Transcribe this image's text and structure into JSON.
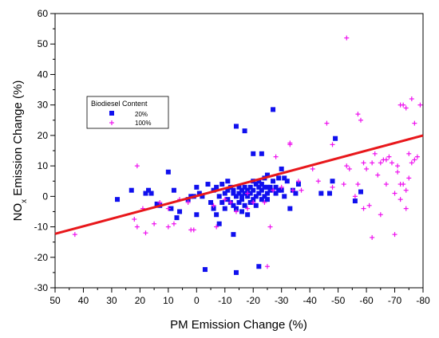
{
  "chart_data": {
    "type": "scatter",
    "title": "",
    "xlabel": "PM Emission Change (%)",
    "ylabel_main": "NO",
    "ylabel_sub": "x",
    "ylabel_rest": " Emission Change (%)",
    "xlim": [
      50,
      -80
    ],
    "ylim": [
      -30,
      60
    ],
    "xticks": [
      50,
      40,
      30,
      20,
      10,
      0,
      -10,
      -20,
      -30,
      -40,
      -50,
      -60,
      -70,
      -80
    ],
    "yticks": [
      -30,
      -20,
      -10,
      0,
      10,
      20,
      30,
      40,
      50,
      60
    ],
    "grid": false,
    "legend": {
      "title": "Biodiesel Content",
      "placement": "left-center"
    },
    "trendline": {
      "color": "#e8171b",
      "from": [
        50,
        -12.3
      ],
      "to": [
        -80,
        20
      ]
    },
    "series": [
      {
        "name": "20%",
        "marker": "square",
        "color": "#1010ee",
        "points": [
          [
            28,
            -1
          ],
          [
            23,
            2
          ],
          [
            18,
            1
          ],
          [
            17,
            2
          ],
          [
            16,
            1
          ],
          [
            14,
            -2.5
          ],
          [
            13,
            -3
          ],
          [
            10,
            8
          ],
          [
            9,
            -4
          ],
          [
            8,
            2
          ],
          [
            7,
            -7
          ],
          [
            6,
            -5
          ],
          [
            3,
            -1
          ],
          [
            2,
            0
          ],
          [
            1,
            0
          ],
          [
            0,
            3
          ],
          [
            0,
            -6
          ],
          [
            -1,
            1
          ],
          [
            -2,
            0
          ],
          [
            -3,
            -24
          ],
          [
            -4,
            4
          ],
          [
            -5,
            -2
          ],
          [
            -6,
            2
          ],
          [
            -6,
            -4
          ],
          [
            -7,
            -6
          ],
          [
            -7,
            3
          ],
          [
            -8,
            0
          ],
          [
            -8,
            -9
          ],
          [
            -9,
            4
          ],
          [
            -9,
            -2
          ],
          [
            -10,
            -4
          ],
          [
            -10,
            1
          ],
          [
            -11,
            2
          ],
          [
            -11,
            -1
          ],
          [
            -11,
            5
          ],
          [
            -12,
            3
          ],
          [
            -12,
            -2
          ],
          [
            -13,
            -12.5
          ],
          [
            -13,
            -3
          ],
          [
            -13,
            1
          ],
          [
            -13,
            2
          ],
          [
            -14,
            23
          ],
          [
            -14,
            -25
          ],
          [
            -14,
            0
          ],
          [
            -14,
            -4
          ],
          [
            -15,
            3
          ],
          [
            -15,
            1
          ],
          [
            -15,
            -2
          ],
          [
            -16,
            2
          ],
          [
            -16,
            -1
          ],
          [
            -16,
            -5
          ],
          [
            -16,
            0
          ],
          [
            -17,
            3
          ],
          [
            -17,
            21.5
          ],
          [
            -17,
            1
          ],
          [
            -17,
            -3
          ],
          [
            -18,
            2
          ],
          [
            -18,
            -6
          ],
          [
            -18,
            0
          ],
          [
            -19,
            -2
          ],
          [
            -19,
            1
          ],
          [
            -19,
            3
          ],
          [
            -20,
            14
          ],
          [
            -20,
            2
          ],
          [
            -20,
            5
          ],
          [
            -20,
            -1
          ],
          [
            -21,
            0
          ],
          [
            -21,
            -3
          ],
          [
            -21,
            4
          ],
          [
            -22,
            -23
          ],
          [
            -22,
            1
          ],
          [
            -22,
            5
          ],
          [
            -22,
            3
          ],
          [
            -23,
            2
          ],
          [
            -23,
            -1
          ],
          [
            -23,
            14
          ],
          [
            -23,
            4
          ],
          [
            -24,
            3
          ],
          [
            -24,
            6
          ],
          [
            -24,
            0
          ],
          [
            -25,
            7
          ],
          [
            -25,
            1
          ],
          [
            -25,
            3
          ],
          [
            -25,
            -1
          ],
          [
            -26,
            3
          ],
          [
            -26,
            2
          ],
          [
            -27,
            28.5
          ],
          [
            -27,
            5
          ],
          [
            -28,
            3
          ],
          [
            -28,
            1
          ],
          [
            -29,
            2
          ],
          [
            -29,
            6
          ],
          [
            -30,
            9
          ],
          [
            -30,
            2
          ],
          [
            -31,
            6
          ],
          [
            -31,
            0
          ],
          [
            -32,
            5
          ],
          [
            -33,
            -4
          ],
          [
            -34,
            2
          ],
          [
            -35,
            1
          ],
          [
            -36,
            4
          ],
          [
            -44,
            1
          ],
          [
            -47,
            1
          ],
          [
            -48,
            5
          ],
          [
            -49,
            19
          ],
          [
            -56,
            -1.5
          ],
          [
            -58,
            1.5
          ]
        ]
      },
      {
        "name": "100%",
        "marker": "plus",
        "color": "#ee10ee",
        "points": [
          [
            43,
            -12.5
          ],
          [
            22,
            -7.5
          ],
          [
            21,
            10
          ],
          [
            21,
            -10
          ],
          [
            19,
            -4
          ],
          [
            18,
            -12
          ],
          [
            15,
            -9
          ],
          [
            13,
            -2
          ],
          [
            10,
            -10
          ],
          [
            10,
            -4
          ],
          [
            8,
            -9
          ],
          [
            6,
            -1
          ],
          [
            3,
            -2
          ],
          [
            2,
            -11
          ],
          [
            1,
            -11
          ],
          [
            -6,
            -3
          ],
          [
            -7,
            -10
          ],
          [
            -10,
            -1
          ],
          [
            -12,
            -2
          ],
          [
            -14,
            -5
          ],
          [
            -18,
            -4
          ],
          [
            -18,
            1
          ],
          [
            -20,
            -2
          ],
          [
            -24,
            -2
          ],
          [
            -25,
            -23
          ],
          [
            -26,
            -10
          ],
          [
            -27,
            2
          ],
          [
            -28,
            13
          ],
          [
            -30,
            3
          ],
          [
            -33,
            17
          ],
          [
            -33,
            17.5
          ],
          [
            -34,
            2
          ],
          [
            -36,
            5
          ],
          [
            -37,
            2
          ],
          [
            -41,
            9
          ],
          [
            -43,
            5
          ],
          [
            -46,
            24
          ],
          [
            -48,
            17
          ],
          [
            -48,
            3
          ],
          [
            -52,
            4
          ],
          [
            -53,
            52
          ],
          [
            -53,
            10
          ],
          [
            -54,
            9
          ],
          [
            -56,
            0
          ],
          [
            -57,
            27
          ],
          [
            -57,
            4
          ],
          [
            -58,
            25
          ],
          [
            -59,
            11
          ],
          [
            -59,
            -4
          ],
          [
            -60,
            9
          ],
          [
            -61,
            -3
          ],
          [
            -62,
            -13.5
          ],
          [
            -62,
            11
          ],
          [
            -63,
            14
          ],
          [
            -64,
            7
          ],
          [
            -65,
            11
          ],
          [
            -65,
            -6
          ],
          [
            -66,
            12
          ],
          [
            -67,
            12
          ],
          [
            -67,
            4
          ],
          [
            -68,
            13
          ],
          [
            -69,
            11
          ],
          [
            -70,
            -12.5
          ],
          [
            -70,
            1
          ],
          [
            -71,
            8
          ],
          [
            -71,
            10
          ],
          [
            -72,
            4
          ],
          [
            -72,
            -1
          ],
          [
            -72,
            30
          ],
          [
            -73,
            30
          ],
          [
            -73,
            4
          ],
          [
            -74,
            2
          ],
          [
            -74,
            -4
          ],
          [
            -74,
            29
          ],
          [
            -75,
            6
          ],
          [
            -75,
            14
          ],
          [
            -76,
            32
          ],
          [
            -76,
            11
          ],
          [
            -77,
            24
          ],
          [
            -77,
            12
          ],
          [
            -78,
            13
          ],
          [
            -79,
            30
          ]
        ]
      }
    ]
  }
}
